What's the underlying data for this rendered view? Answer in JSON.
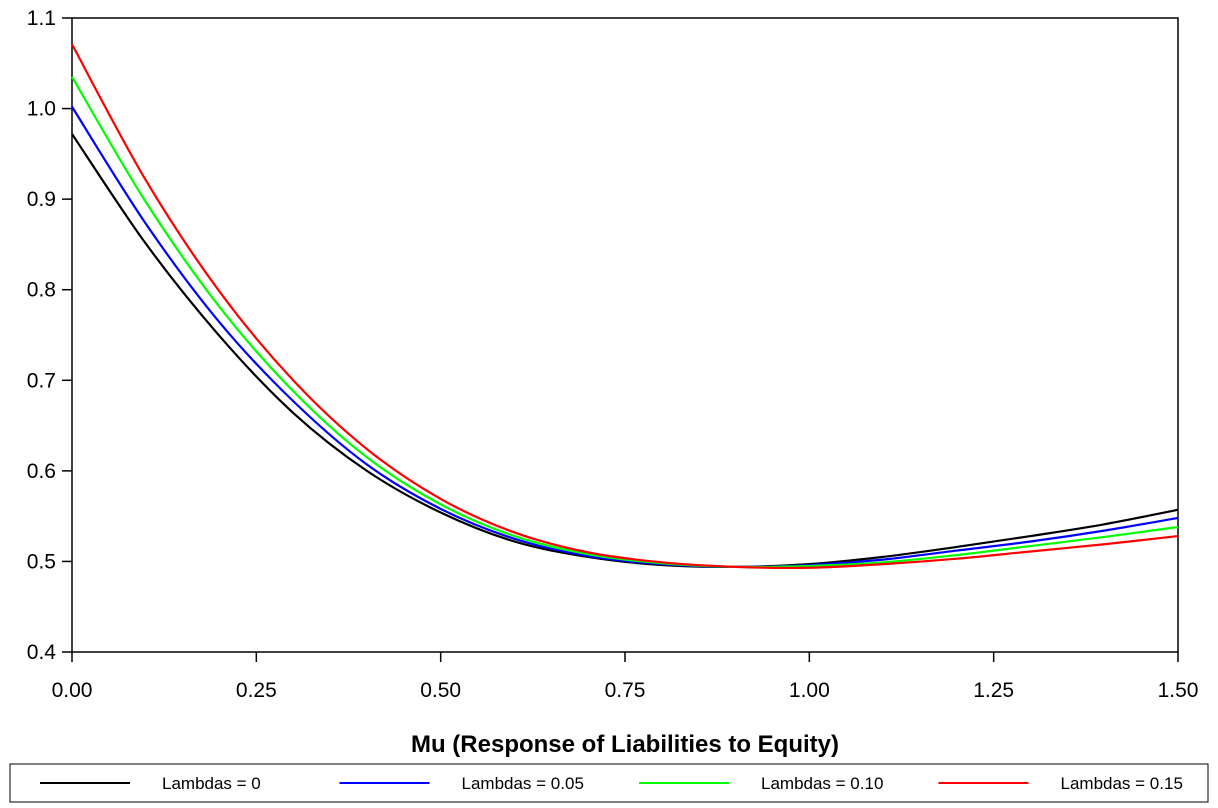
{
  "chart_data": {
    "type": "line",
    "title": "",
    "xlabel": "Mu (Response of Liabilities to Equity)",
    "ylabel": "",
    "xlim": [
      0,
      1.5
    ],
    "ylim": [
      0.4,
      1.1
    ],
    "xticks": [
      "0.00",
      "0.25",
      "0.50",
      "0.75",
      "1.00",
      "1.25",
      "1.50"
    ],
    "yticks": [
      "0.4",
      "0.5",
      "0.6",
      "0.7",
      "0.8",
      "0.9",
      "1.0",
      "1.1"
    ],
    "grid": false,
    "legend_position": "bottom",
    "x": [
      0,
      0.1,
      0.2,
      0.3,
      0.4,
      0.5,
      0.6,
      0.7,
      0.8,
      0.9,
      1.0,
      1.1,
      1.2,
      1.3,
      1.4,
      1.5
    ],
    "series": [
      {
        "name": "Lambdas = 0",
        "color": "#000000",
        "values": [
          0.972,
          0.851,
          0.749,
          0.664,
          0.6,
          0.554,
          0.522,
          0.505,
          0.496,
          0.494,
          0.497,
          0.505,
          0.516,
          0.528,
          0.541,
          0.557
        ]
      },
      {
        "name": "Lambdas = 0.05",
        "color": "#0000ff",
        "values": [
          1.002,
          0.873,
          0.764,
          0.677,
          0.607,
          0.558,
          0.525,
          0.506,
          0.497,
          0.494,
          0.496,
          0.502,
          0.512,
          0.522,
          0.534,
          0.548
        ]
      },
      {
        "name": "Lambdas = 0.10",
        "color": "#00ff00",
        "values": [
          1.035,
          0.897,
          0.781,
          0.688,
          0.615,
          0.563,
          0.528,
          0.508,
          0.498,
          0.494,
          0.495,
          0.499,
          0.507,
          0.517,
          0.527,
          0.538
        ]
      },
      {
        "name": "Lambdas = 0.15",
        "color": "#ff0000",
        "values": [
          1.071,
          0.921,
          0.798,
          0.7,
          0.624,
          0.569,
          0.532,
          0.51,
          0.499,
          0.494,
          0.493,
          0.497,
          0.503,
          0.511,
          0.519,
          0.528
        ]
      }
    ]
  }
}
